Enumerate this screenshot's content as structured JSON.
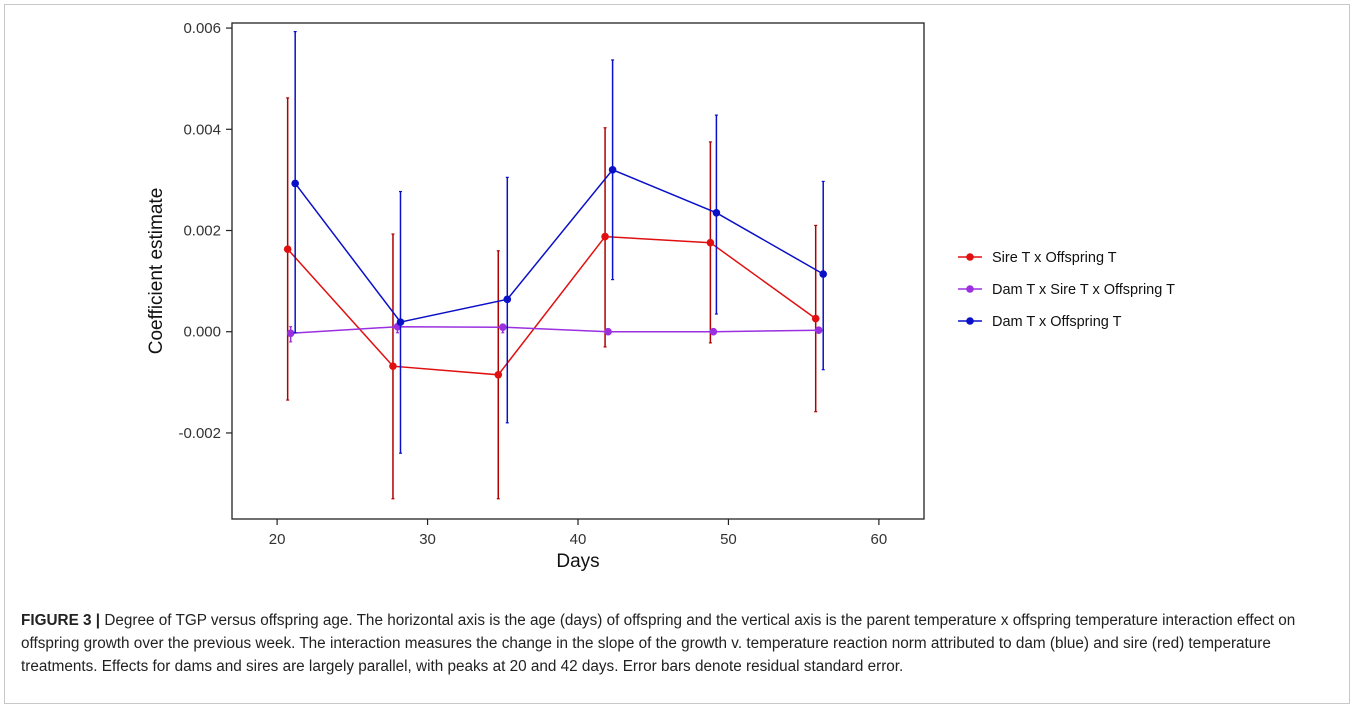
{
  "chart_data": {
    "type": "line",
    "title": "",
    "xlabel": "Days",
    "ylabel": "Coefficient estimate",
    "xlim": [
      17,
      63
    ],
    "ylim": [
      -0.0037,
      0.0061
    ],
    "x_ticks": [
      20,
      30,
      40,
      50,
      60
    ],
    "y_ticks": [
      -0.002,
      0.0,
      0.002,
      0.004,
      0.006
    ],
    "y_tick_labels": [
      "-0.002",
      "0.000",
      "0.002",
      "0.004",
      "0.006"
    ],
    "grid": false,
    "legend_position": "right",
    "series": [
      {
        "name": "Sire T x Offspring T",
        "color": "#e01010",
        "errorbar_color": "#b00000",
        "x": [
          20.7,
          27.7,
          34.7,
          41.8,
          48.8,
          55.8
        ],
        "y": [
          0.00163,
          -0.00068,
          -0.00085,
          0.00188,
          0.00176,
          0.00026
        ],
        "ymin": [
          -0.00135,
          -0.0033,
          -0.0033,
          -0.0003,
          -0.00022,
          -0.00158
        ],
        "ymax": [
          0.00462,
          0.00193,
          0.0016,
          0.00403,
          0.00375,
          0.0021
        ]
      },
      {
        "name": "Dam T x Sire T x Offspring T",
        "color": "#9a30e0",
        "errorbar_color": "#9a30e0",
        "x": [
          20.9,
          28.0,
          35.0,
          42.0,
          49.0,
          56.0
        ],
        "y": [
          -3e-05,
          0.0001,
          9e-05,
          0.0,
          0.0,
          3e-05
        ],
        "ymin": [
          -0.0002,
          -2e-05,
          -2e-05,
          -2e-05,
          -3e-05,
          -2e-05
        ],
        "ymax": [
          0.0001,
          0.00015,
          0.00015,
          2e-05,
          3e-05,
          8e-05
        ]
      },
      {
        "name": "Dam T x Offspring T",
        "color": "#0a10c8",
        "errorbar_color": "#0a10c8",
        "x": [
          21.2,
          28.2,
          35.3,
          42.3,
          49.2,
          56.3
        ],
        "y": [
          0.00293,
          0.00019,
          0.00064,
          0.0032,
          0.00235,
          0.00114
        ],
        "ymin": [
          -2e-05,
          -0.0024,
          -0.0018,
          0.00103,
          0.00035,
          -0.00075
        ],
        "ymax": [
          0.00593,
          0.00277,
          0.00305,
          0.00537,
          0.00428,
          0.00297
        ]
      }
    ]
  },
  "caption": {
    "label": "FIGURE 3 |",
    "text": " Degree of TGP versus offspring age. The horizontal axis is the age (days) of offspring and the vertical axis is the parent temperature x offspring temperature interaction effect on offspring growth over the previous week. The interaction measures the change in the slope of the growth v. temperature reaction norm attributed to dam (blue) and sire (red) temperature treatments. Effects for dams and sires are largely parallel, with peaks at 20 and 42 days. Error bars denote residual standard error."
  }
}
